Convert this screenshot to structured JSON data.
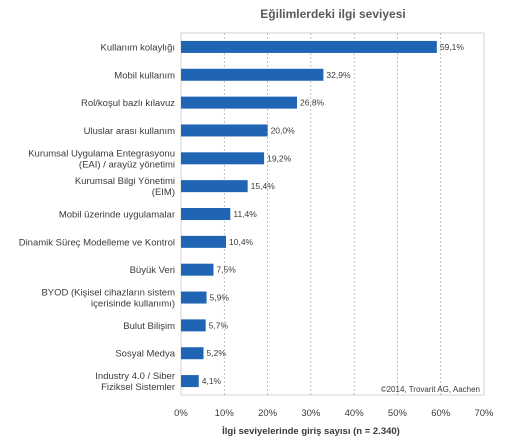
{
  "chart_data": {
    "type": "bar",
    "orientation": "horizontal",
    "title": "Eğilimlerdeki ilgi seviyesi",
    "xlabel": "İlgi seviyelerinde giriş sayısı (n = 2.340)",
    "ylabel": "",
    "xlim": [
      0,
      70
    ],
    "x_ticks": [
      0,
      10,
      20,
      30,
      40,
      50,
      60,
      70
    ],
    "x_tick_labels": [
      "0%",
      "10%",
      "20%",
      "30%",
      "40%",
      "50%",
      "60%",
      "70%"
    ],
    "grid": "vertical dashed",
    "bar_color": "#1f65b4",
    "categories": [
      [
        "Kullanım kolaylığı"
      ],
      [
        "Mobil kullanım"
      ],
      [
        "Rol/koşul bazlı kılavuz"
      ],
      [
        "Uluslar arası kullanım"
      ],
      [
        "Kurumsal Uygulama Entegrasyonu",
        "(EAI) / arayüz yönetimi"
      ],
      [
        "Kurumsal Bilgi Yönetimi",
        "(EIM)"
      ],
      [
        "Mobil üzerinde uygulamalar"
      ],
      [
        "Dinamik Süreç Modelleme ve Kontrol"
      ],
      [
        "Büyük Veri"
      ],
      [
        "BYOD (Kişisel cihazların sistem",
        "içerisinde kullanımı)"
      ],
      [
        "Bulut Bilişim"
      ],
      [
        "Sosyal Medya"
      ],
      [
        "Industry 4.0 / Siber",
        "Fiziksel Sistemler"
      ]
    ],
    "values": [
      59.1,
      32.9,
      26.8,
      20.0,
      19.2,
      15.4,
      11.4,
      10.4,
      7.5,
      5.9,
      5.7,
      5.2,
      4.1
    ],
    "value_labels": [
      "59,1%",
      "32,9%",
      "26,8%",
      "20,0%",
      "19,2%",
      "15,4%",
      "11,4%",
      "10,4%",
      "7,5%",
      "5,9%",
      "5,7%",
      "5,2%",
      "4,1%"
    ],
    "annotation": "©2014, Trovarit AG, Aachen"
  }
}
